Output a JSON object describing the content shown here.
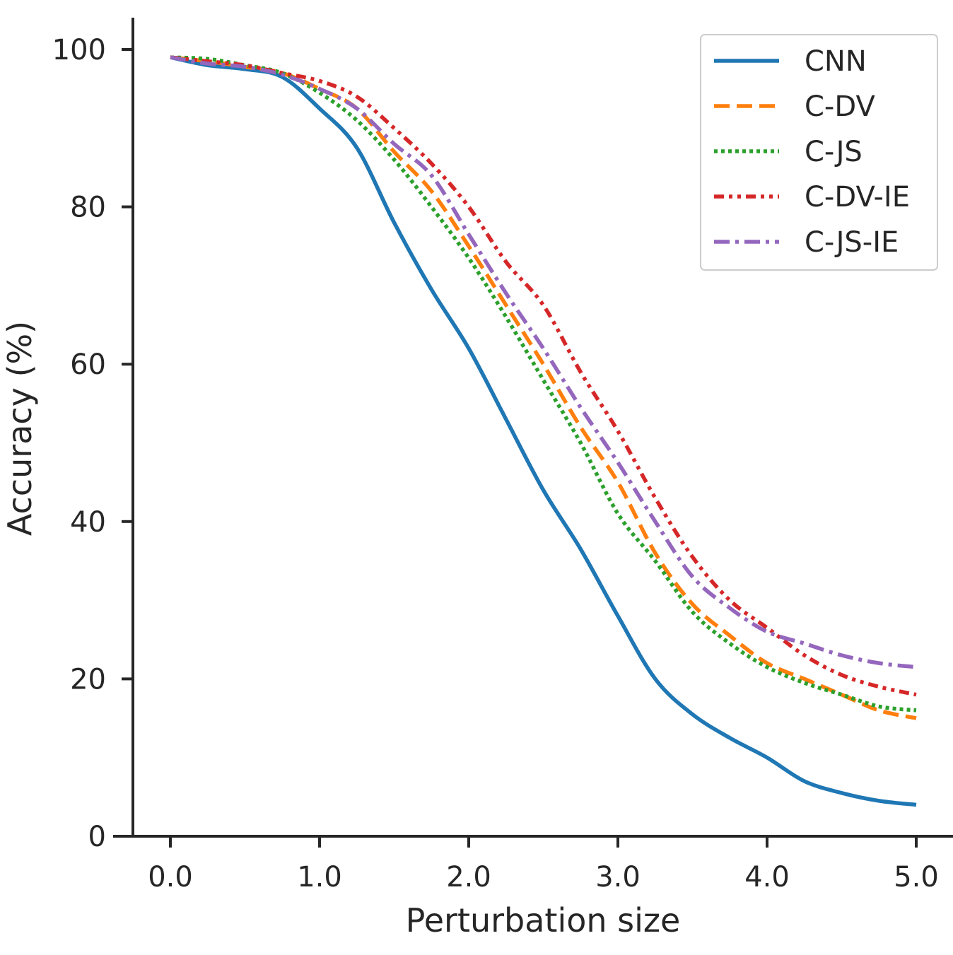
{
  "chart_data": {
    "type": "line",
    "title": "",
    "xlabel": "Perturbation size",
    "ylabel": "Accuracy (%)",
    "xlim": [
      -0.25,
      5.25
    ],
    "ylim": [
      0,
      104
    ],
    "x_ticks": [
      0,
      1,
      2,
      3,
      4,
      5
    ],
    "x_tick_labels": [
      "0.0",
      "1.0",
      "2.0",
      "3.0",
      "4.0",
      "5.0"
    ],
    "y_ticks": [
      0,
      20,
      40,
      60,
      80,
      100
    ],
    "y_tick_labels": [
      "0",
      "20",
      "40",
      "60",
      "80",
      "100"
    ],
    "grid": false,
    "legend_position": "top-right",
    "x": [
      0,
      0.25,
      0.5,
      0.75,
      1.0,
      1.25,
      1.5,
      1.75,
      2.0,
      2.25,
      2.5,
      2.75,
      3.0,
      3.25,
      3.5,
      3.75,
      4.0,
      4.25,
      4.5,
      4.75,
      5.0
    ],
    "series": [
      {
        "name": "CNN",
        "color": "#1f77b4",
        "style": "solid",
        "values": [
          99.0,
          98.0,
          97.5,
          96.5,
          92.5,
          87.5,
          78.0,
          69.5,
          62.0,
          53.0,
          44.0,
          36.5,
          28.0,
          20.0,
          15.5,
          12.5,
          10.0,
          7.0,
          5.5,
          4.5,
          4.0
        ]
      },
      {
        "name": "C-DV",
        "color": "#ff7f0e",
        "style": "dashed",
        "values": [
          99.0,
          98.5,
          97.8,
          97.0,
          95.0,
          92.5,
          87.0,
          82.0,
          75.0,
          67.5,
          60.0,
          52.0,
          45.0,
          36.0,
          29.5,
          25.5,
          22.0,
          20.0,
          18.0,
          16.0,
          15.0
        ]
      },
      {
        "name": "C-JS",
        "color": "#2ca02c",
        "style": "dotted",
        "values": [
          99.0,
          98.8,
          98.0,
          97.0,
          94.5,
          91.0,
          86.0,
          80.0,
          73.5,
          66.0,
          58.0,
          50.0,
          41.0,
          35.0,
          28.5,
          24.5,
          21.5,
          19.5,
          18.0,
          16.5,
          16.0
        ]
      },
      {
        "name": "C-DV-IE",
        "color": "#d62728",
        "style": "dashdotdot",
        "values": [
          99.0,
          98.5,
          98.0,
          97.0,
          96.0,
          94.0,
          90.0,
          85.5,
          80.0,
          73.0,
          67.5,
          59.0,
          51.5,
          43.0,
          35.5,
          30.0,
          26.5,
          23.0,
          20.5,
          19.0,
          18.0
        ]
      },
      {
        "name": "C-JS-IE",
        "color": "#9467bd",
        "style": "dashdot",
        "values": [
          99.0,
          98.2,
          97.8,
          96.8,
          95.0,
          92.5,
          88.0,
          84.0,
          76.5,
          69.0,
          62.0,
          54.5,
          47.5,
          40.0,
          33.0,
          29.0,
          26.0,
          24.5,
          23.0,
          22.0,
          21.5
        ]
      }
    ]
  }
}
